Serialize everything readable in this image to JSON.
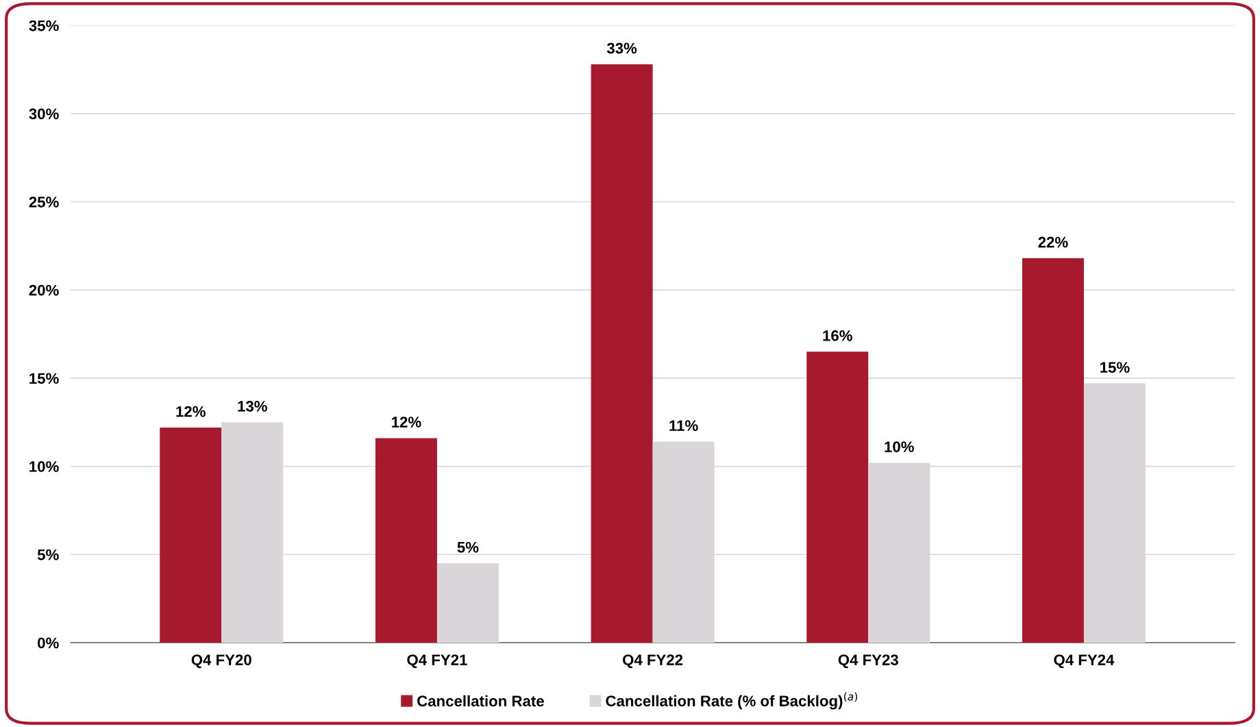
{
  "chart_data": {
    "type": "bar",
    "categories": [
      "Q4 FY20",
      "Q4 FY21",
      "Q4 FY22",
      "Q4 FY23",
      "Q4 FY24"
    ],
    "series": [
      {
        "name": "Cancellation Rate",
        "color": "#a6192e",
        "values": [
          12.2,
          11.6,
          32.8,
          16.5,
          21.8
        ],
        "value_labels": [
          "12%",
          "12%",
          "33%",
          "16%",
          "22%"
        ]
      },
      {
        "name": "Cancellation Rate (% of Backlog)$^{(a)}$",
        "color": "#d9d5d8",
        "values": [
          12.5,
          4.5,
          11.4,
          10.2,
          14.7
        ],
        "value_labels": [
          "13%",
          "5%",
          "11%",
          "10%",
          "15%"
        ]
      }
    ],
    "ylim": [
      0,
      35
    ],
    "yticks": [
      {
        "value": 0,
        "label": "0%"
      },
      {
        "value": 5,
        "label": "5%"
      },
      {
        "value": 10,
        "label": "10%"
      },
      {
        "value": 15,
        "label": "15%"
      },
      {
        "value": 20,
        "label": "20%"
      },
      {
        "value": 25,
        "label": "25%"
      },
      {
        "value": 30,
        "label": "30%"
      },
      {
        "value": 35,
        "label": "35%"
      }
    ],
    "grid": "y",
    "legend": "bottom"
  }
}
